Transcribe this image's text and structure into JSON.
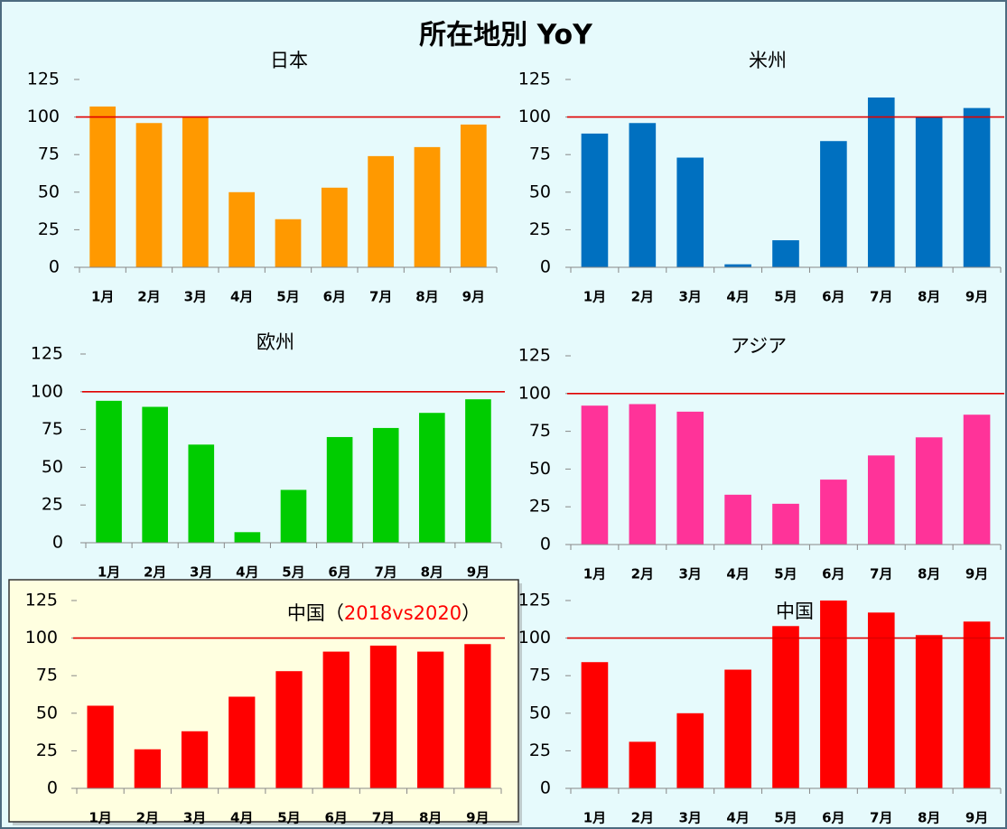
{
  "title": "所在地別 YoY",
  "chart_data": [
    {
      "type": "bar",
      "title": [
        {
          "text": "日本"
        }
      ],
      "categories": [
        "1月",
        "2月",
        "3月",
        "4月",
        "5月",
        "6月",
        "7月",
        "8月",
        "9月"
      ],
      "values": [
        107,
        96,
        100,
        50,
        32,
        53,
        74,
        80,
        95
      ],
      "color": "#ff9900",
      "ylim": [
        0,
        125
      ],
      "yticks": [
        0,
        25,
        50,
        75,
        100,
        125
      ],
      "reference_line": 100,
      "reference_color": "#e00000"
    },
    {
      "type": "bar",
      "title": [
        {
          "text": "米州"
        }
      ],
      "categories": [
        "1月",
        "2月",
        "3月",
        "4月",
        "5月",
        "6月",
        "7月",
        "8月",
        "9月"
      ],
      "values": [
        89,
        96,
        73,
        2,
        18,
        84,
        113,
        100,
        106
      ],
      "color": "#0070c0",
      "ylim": [
        0,
        125
      ],
      "yticks": [
        0,
        25,
        50,
        75,
        100,
        125
      ],
      "reference_line": 100,
      "reference_color": "#e00000"
    },
    {
      "type": "bar",
      "title": [
        {
          "text": "欧州"
        }
      ],
      "categories": [
        "1月",
        "2月",
        "3月",
        "4月",
        "5月",
        "6月",
        "7月",
        "8月",
        "9月"
      ],
      "values": [
        94,
        90,
        65,
        7,
        35,
        70,
        76,
        86,
        95
      ],
      "color": "#00cc00",
      "ylim": [
        0,
        125
      ],
      "yticks": [
        0,
        25,
        50,
        75,
        100,
        125
      ],
      "reference_line": 100,
      "reference_color": "#e00000"
    },
    {
      "type": "bar",
      "title": [
        {
          "text": "アジア"
        }
      ],
      "categories": [
        "1月",
        "2月",
        "3月",
        "4月",
        "5月",
        "6月",
        "7月",
        "8月",
        "9月"
      ],
      "values": [
        92,
        93,
        88,
        33,
        27,
        43,
        59,
        71,
        86
      ],
      "color": "#ff3399",
      "ylim": [
        0,
        125
      ],
      "yticks": [
        0,
        25,
        50,
        75,
        100,
        125
      ],
      "reference_line": 100,
      "reference_color": "#e00000"
    },
    {
      "type": "bar",
      "title": [
        {
          "text": "中国（"
        },
        {
          "text": "2018vs2020",
          "color": "#ff0000"
        },
        {
          "text": "）"
        }
      ],
      "categories": [
        "1月",
        "2月",
        "3月",
        "4月",
        "5月",
        "6月",
        "7月",
        "8月",
        "9月"
      ],
      "values": [
        55,
        26,
        38,
        61,
        78,
        91,
        95,
        91,
        96
      ],
      "color": "#ff0000",
      "ylim": [
        0,
        125
      ],
      "yticks": [
        0,
        25,
        50,
        75,
        100,
        125
      ],
      "reference_line": 100,
      "reference_color": "#e00000"
    },
    {
      "type": "bar",
      "title": [
        {
          "text": "中国"
        }
      ],
      "categories": [
        "1月",
        "2月",
        "3月",
        "4月",
        "5月",
        "6月",
        "7月",
        "8月",
        "9月"
      ],
      "values": [
        84,
        31,
        50,
        79,
        108,
        125,
        117,
        102,
        111
      ],
      "color": "#ff0000",
      "ylim": [
        0,
        125
      ],
      "yticks": [
        0,
        25,
        50,
        75,
        100,
        125
      ],
      "reference_line": 100,
      "reference_color": "#e00000"
    }
  ]
}
